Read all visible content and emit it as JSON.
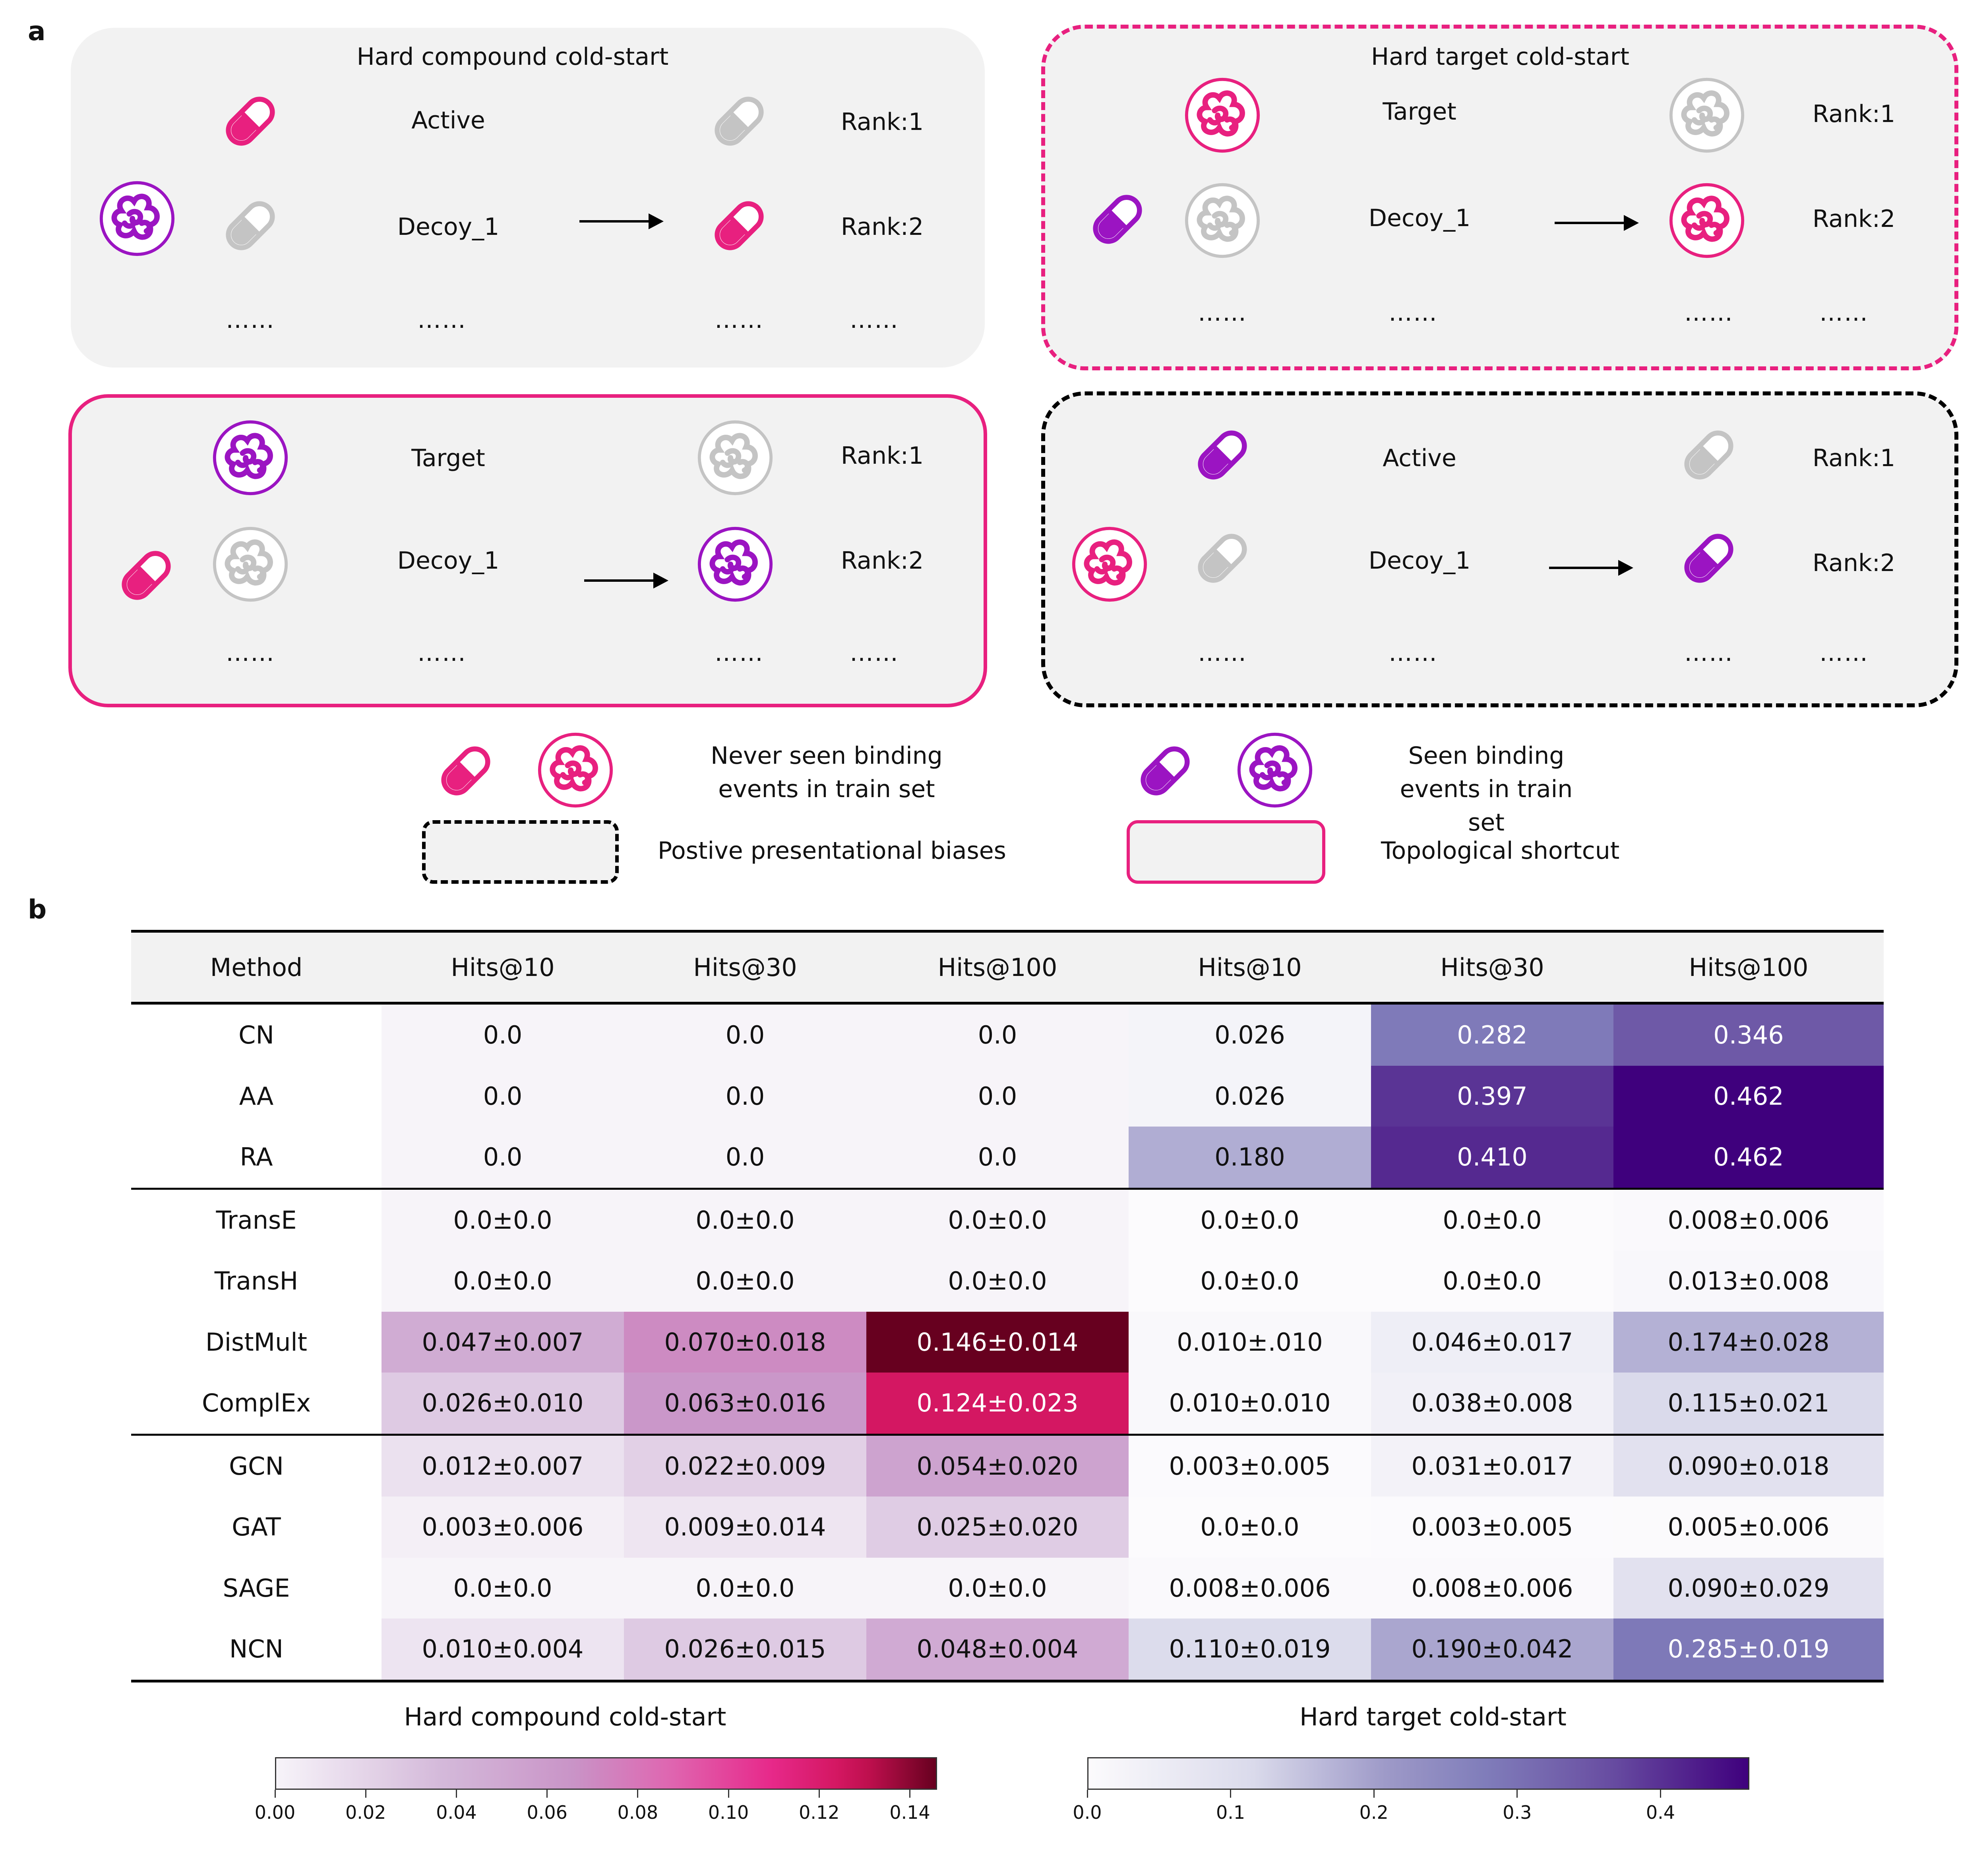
{
  "panel_a": {
    "label": "a",
    "scenarios": [
      {
        "title": "Hard compound cold-start",
        "query_label": "Active",
        "decoy_label": "Decoy_1",
        "rank1": "Rank:1",
        "rank2": "Rank:2",
        "dots": "……"
      },
      {
        "title": "Hard target cold-start",
        "query_label": "Target",
        "decoy_label": "Decoy_1",
        "rank1": "Rank:1",
        "rank2": "Rank:2",
        "dots": "……"
      },
      {
        "title": "",
        "query_label": "Target",
        "decoy_label": "Decoy_1",
        "rank1": "Rank:1",
        "rank2": "Rank:2",
        "dots": "……"
      },
      {
        "title": "",
        "query_label": "Active",
        "decoy_label": "Decoy_1",
        "rank1": "Rank:1",
        "rank2": "Rank:2",
        "dots": "……"
      }
    ],
    "legend": {
      "never_seen": "Never seen binding\nevents in train set",
      "seen": "Seen binding\nevents in train set",
      "positive_bias": "Postive presentational biases",
      "topological": "Topological shortcut"
    },
    "colors": {
      "unseen": "#e8207f",
      "seen": "#9b14c2",
      "gray": "#c4c4c4",
      "panel_bg": "#f2f2f2"
    },
    "icons": [
      "pill-icon",
      "protein-icon"
    ]
  },
  "panel_b": {
    "label": "b",
    "headers": [
      "Method",
      "Hits@10",
      "Hits@30",
      "Hits@100",
      "Hits@10",
      "Hits@30",
      "Hits@100"
    ],
    "rows": [
      {
        "method": "CN",
        "cells": [
          "0.0",
          "0.0",
          "0.0",
          "0.026",
          "0.282",
          "0.346"
        ],
        "vals": [
          0.0,
          0.0,
          0.0,
          0.026,
          0.282,
          0.346
        ]
      },
      {
        "method": "AA",
        "cells": [
          "0.0",
          "0.0",
          "0.0",
          "0.026",
          "0.397",
          "0.462"
        ],
        "vals": [
          0.0,
          0.0,
          0.0,
          0.026,
          0.397,
          0.462
        ]
      },
      {
        "method": "RA",
        "cells": [
          "0.0",
          "0.0",
          "0.0",
          "0.180",
          "0.410",
          "0.462"
        ],
        "vals": [
          0.0,
          0.0,
          0.0,
          0.18,
          0.41,
          0.462
        ]
      },
      {
        "method": "TransE",
        "cells": [
          "0.0±0.0",
          "0.0±0.0",
          "0.0±0.0",
          "0.0±0.0",
          "0.0±0.0",
          "0.008±0.006"
        ],
        "vals": [
          0.0,
          0.0,
          0.0,
          0.0,
          0.0,
          0.008
        ]
      },
      {
        "method": "TransH",
        "cells": [
          "0.0±0.0",
          "0.0±0.0",
          "0.0±0.0",
          "0.0±0.0",
          "0.0±0.0",
          "0.013±0.008"
        ],
        "vals": [
          0.0,
          0.0,
          0.0,
          0.0,
          0.0,
          0.013
        ]
      },
      {
        "method": "DistMult",
        "cells": [
          "0.047±0.007",
          "0.070±0.018",
          "0.146±0.014",
          "0.010±.010",
          "0.046±0.017",
          "0.174±0.028"
        ],
        "vals": [
          0.047,
          0.07,
          0.146,
          0.01,
          0.046,
          0.174
        ]
      },
      {
        "method": "ComplEx",
        "cells": [
          "0.026±0.010",
          "0.063±0.016",
          "0.124±0.023",
          "0.010±0.010",
          "0.038±0.008",
          "0.115±0.021"
        ],
        "vals": [
          0.026,
          0.063,
          0.124,
          0.01,
          0.038,
          0.115
        ]
      },
      {
        "method": "GCN",
        "cells": [
          "0.012±0.007",
          "0.022±0.009",
          "0.054±0.020",
          "0.003±0.005",
          "0.031±0.017",
          "0.090±0.018"
        ],
        "vals": [
          0.012,
          0.022,
          0.054,
          0.003,
          0.031,
          0.09
        ]
      },
      {
        "method": "GAT",
        "cells": [
          "0.003±0.006",
          "0.009±0.014",
          "0.025±0.020",
          "0.0±0.0",
          "0.003±0.005",
          "0.005±0.006"
        ],
        "vals": [
          0.003,
          0.009,
          0.025,
          0.0,
          0.003,
          0.005
        ]
      },
      {
        "method": "SAGE",
        "cells": [
          "0.0±0.0",
          "0.0±0.0",
          "0.0±0.0",
          "0.008±0.006",
          "0.008±0.006",
          "0.090±0.029"
        ],
        "vals": [
          0.0,
          0.0,
          0.0,
          0.008,
          0.008,
          0.09
        ]
      },
      {
        "method": "NCN",
        "cells": [
          "0.010±0.004",
          "0.026±0.015",
          "0.048±0.004",
          "0.110±0.019",
          "0.190±0.042",
          "0.285±0.019"
        ],
        "vals": [
          0.01,
          0.026,
          0.048,
          0.11,
          0.19,
          0.285
        ]
      }
    ],
    "colorbars": [
      {
        "title": "Hard compound cold-start",
        "range": [
          0,
          0.146
        ],
        "ticks": [
          "0.00",
          "0.02",
          "0.04",
          "0.06",
          "0.08",
          "0.10",
          "0.12",
          "0.14"
        ],
        "tick_values": [
          0,
          0.02,
          0.04,
          0.06,
          0.08,
          0.1,
          0.12,
          0.14
        ]
      },
      {
        "title": "Hard target cold-start",
        "range": [
          0,
          0.462
        ],
        "ticks": [
          "0.0",
          "0.1",
          "0.2",
          "0.3",
          "0.4"
        ],
        "tick_values": [
          0,
          0.1,
          0.2,
          0.3,
          0.4
        ]
      }
    ]
  }
}
